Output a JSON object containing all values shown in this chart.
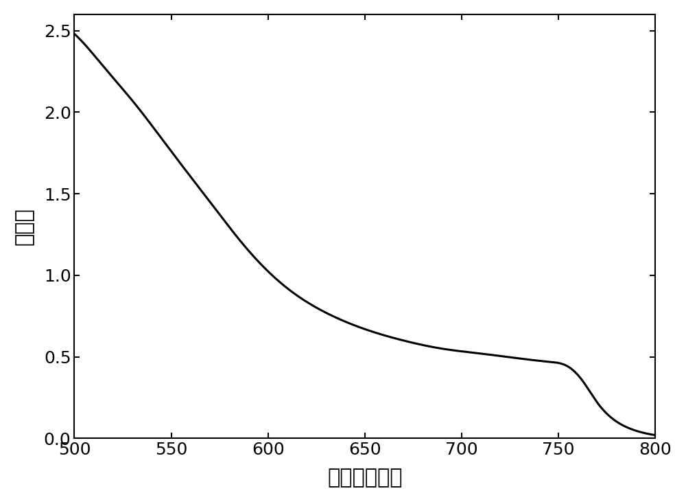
{
  "xlabel": "波长（纳米）",
  "ylabel": "吸光度",
  "xlim": [
    500,
    800
  ],
  "ylim": [
    0,
    2.6
  ],
  "xticks": [
    500,
    550,
    600,
    650,
    700,
    750,
    800
  ],
  "yticks": [
    0.0,
    0.5,
    1.0,
    1.5,
    2.0,
    2.5
  ],
  "line_color": "#000000",
  "line_width": 2.2,
  "background_color": "#ffffff",
  "tick_fontsize": 18,
  "label_fontsize": 22,
  "figsize": [
    10.0,
    7.31
  ],
  "dpi": 100,
  "keypoints_x": [
    500,
    505,
    515,
    530,
    550,
    570,
    590,
    610,
    630,
    650,
    670,
    690,
    710,
    730,
    745,
    755,
    762,
    770,
    778,
    785,
    792,
    800
  ],
  "keypoints_y": [
    2.48,
    2.42,
    2.28,
    2.07,
    1.76,
    1.45,
    1.15,
    0.92,
    0.77,
    0.67,
    0.6,
    0.55,
    0.52,
    0.49,
    0.47,
    0.44,
    0.36,
    0.22,
    0.12,
    0.07,
    0.04,
    0.02
  ]
}
